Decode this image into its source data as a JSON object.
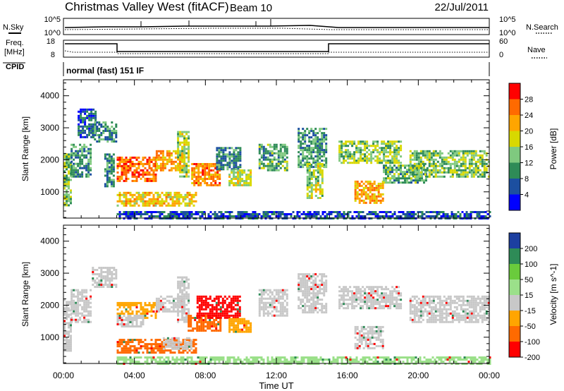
{
  "header": {
    "title": "Christmas Valley West (fitACF)",
    "beam": "Beam 10",
    "date": "22/Jul/2011"
  },
  "aux": {
    "nsky_label": "N.Sky",
    "nsearch_label": "N.Search",
    "noise_ticks_left": [
      "10^5",
      "10^0"
    ],
    "noise_ticks_right": [
      "10^5",
      "10^0"
    ],
    "freq_label_1": "Freq.",
    "freq_label_2": "[MHz]",
    "freq_ticks": [
      "18",
      "8"
    ],
    "nave_label": "Nave",
    "nave_ticks": [
      "60",
      "0"
    ],
    "cpid_label": "CPID",
    "cpid_text": "normal (fast) 151 IF"
  },
  "chart_data": [
    {
      "type": "heatmap",
      "name": "power-panel",
      "ylabel": "Slant Range [km]",
      "y_ticks": [
        "4000",
        "3000",
        "2000",
        "1000"
      ],
      "y_tick_values": [
        4000,
        3000,
        2000,
        1000
      ],
      "ylim": [
        180,
        4500
      ],
      "xlim_hours": [
        0,
        24
      ],
      "colorbar_label": "Power [dB]",
      "colorbar_ticks": [
        "28",
        "24",
        "20",
        "16",
        "12",
        "8",
        "4"
      ],
      "colorbar_colors": [
        "#ff0000",
        "#ff6a00",
        "#ffa500",
        "#d8d800",
        "#7fc97f",
        "#2e8b57",
        "#1c4fa0",
        "#0000ff"
      ],
      "regions": [
        {
          "t": [
            0.0,
            0.4
          ],
          "r": [
            600,
            2200
          ],
          "v": 14
        },
        {
          "t": [
            0.4,
            1.5
          ],
          "r": [
            1500,
            2500
          ],
          "v": 10
        },
        {
          "t": [
            0.8,
            1.8
          ],
          "r": [
            2700,
            3600
          ],
          "v": 6
        },
        {
          "t": [
            1.6,
            3.0
          ],
          "r": [
            2600,
            3200
          ],
          "v": 10
        },
        {
          "t": [
            2.3,
            2.8
          ],
          "r": [
            1200,
            2200
          ],
          "v": 10
        },
        {
          "t": [
            3.0,
            5.2
          ],
          "r": [
            1350,
            2100
          ],
          "v": 26
        },
        {
          "t": [
            5.2,
            6.8
          ],
          "r": [
            1700,
            2300
          ],
          "v": 22
        },
        {
          "t": [
            3.0,
            7.5
          ],
          "r": [
            550,
            1000
          ],
          "v": 20
        },
        {
          "t": [
            6.4,
            7.0
          ],
          "r": [
            1500,
            2900
          ],
          "v": 16
        },
        {
          "t": [
            7.2,
            8.8
          ],
          "r": [
            1200,
            1900
          ],
          "v": 24
        },
        {
          "t": [
            8.6,
            10.0
          ],
          "r": [
            1700,
            2400
          ],
          "v": 9
        },
        {
          "t": [
            9.3,
            10.6
          ],
          "r": [
            1200,
            1700
          ],
          "v": 17
        },
        {
          "t": [
            11.0,
            12.6
          ],
          "r": [
            1700,
            2500
          ],
          "v": 12
        },
        {
          "t": [
            13.2,
            14.8
          ],
          "r": [
            1800,
            3000
          ],
          "v": 11
        },
        {
          "t": [
            13.7,
            14.6
          ],
          "r": [
            800,
            1900
          ],
          "v": 16
        },
        {
          "t": [
            15.5,
            19.0
          ],
          "r": [
            1900,
            2600
          ],
          "v": 15
        },
        {
          "t": [
            16.4,
            18.0
          ],
          "r": [
            650,
            1350
          ],
          "v": 22
        },
        {
          "t": [
            18.0,
            20.5
          ],
          "r": [
            1300,
            1850
          ],
          "v": 12
        },
        {
          "t": [
            19.5,
            24.0
          ],
          "r": [
            1500,
            2300
          ],
          "v": 14
        },
        {
          "t": [
            3.0,
            24.0
          ],
          "r": [
            200,
            400
          ],
          "v": 6
        }
      ]
    },
    {
      "type": "heatmap",
      "name": "velocity-panel",
      "ylabel": "Slant Range [km]",
      "xlabel": "Time UT",
      "x_ticks": [
        "00:00",
        "04:00",
        "08:00",
        "12:00",
        "16:00",
        "20:00",
        "00:00"
      ],
      "x_tick_hours": [
        0,
        4,
        8,
        12,
        16,
        20,
        24
      ],
      "y_ticks": [
        "4000",
        "3000",
        "2000",
        "1000"
      ],
      "y_tick_values": [
        4000,
        3000,
        2000,
        1000
      ],
      "ylim": [
        180,
        4500
      ],
      "xlim_hours": [
        0,
        24
      ],
      "colorbar_label": "Velocity [m s^-1]",
      "colorbar_ticks": [
        "200",
        "100",
        "50",
        "15",
        "-15",
        "-50",
        "-100",
        "-200"
      ],
      "colorbar_colors": [
        "#1c3fa0",
        "#2e8b57",
        "#6acb3c",
        "#9be08a",
        "#c8c8c8",
        "#ffa500",
        "#ff6a00",
        "#ff0000"
      ],
      "regions": [
        {
          "t": [
            0.0,
            0.4
          ],
          "r": [
            600,
            2200
          ],
          "v": 0
        },
        {
          "t": [
            0.4,
            1.5
          ],
          "r": [
            1500,
            2500
          ],
          "v": 0
        },
        {
          "t": [
            1.6,
            3.0
          ],
          "r": [
            2600,
            3200
          ],
          "v": 0
        },
        {
          "t": [
            3.0,
            5.2
          ],
          "r": [
            1600,
            2100
          ],
          "v": -35
        },
        {
          "t": [
            3.0,
            4.5
          ],
          "r": [
            1350,
            1700
          ],
          "v": 0
        },
        {
          "t": [
            5.2,
            6.8
          ],
          "r": [
            1800,
            2300
          ],
          "v": 0
        },
        {
          "t": [
            3.0,
            7.5
          ],
          "r": [
            550,
            950
          ],
          "v": -60
        },
        {
          "t": [
            5.6,
            7.2
          ],
          "r": [
            650,
            1000
          ],
          "v": 0
        },
        {
          "t": [
            6.4,
            7.0
          ],
          "r": [
            1500,
            2900
          ],
          "v": 0
        },
        {
          "t": [
            7.0,
            8.8
          ],
          "r": [
            1200,
            1700
          ],
          "v": -80
        },
        {
          "t": [
            7.5,
            10.0
          ],
          "r": [
            1600,
            2300
          ],
          "v": -180
        },
        {
          "t": [
            9.3,
            10.6
          ],
          "r": [
            1200,
            1600
          ],
          "v": -40
        },
        {
          "t": [
            11.0,
            12.6
          ],
          "r": [
            1700,
            2500
          ],
          "v": 0
        },
        {
          "t": [
            13.2,
            14.8
          ],
          "r": [
            1800,
            3000
          ],
          "v": 0
        },
        {
          "t": [
            15.5,
            19.0
          ],
          "r": [
            1900,
            2600
          ],
          "v": 0
        },
        {
          "t": [
            16.4,
            18.0
          ],
          "r": [
            650,
            1350
          ],
          "v": 0
        },
        {
          "t": [
            19.5,
            24.0
          ],
          "r": [
            1500,
            2300
          ],
          "v": 0
        },
        {
          "t": [
            3.0,
            24.0
          ],
          "r": [
            200,
            400
          ],
          "v": 30
        }
      ]
    }
  ]
}
